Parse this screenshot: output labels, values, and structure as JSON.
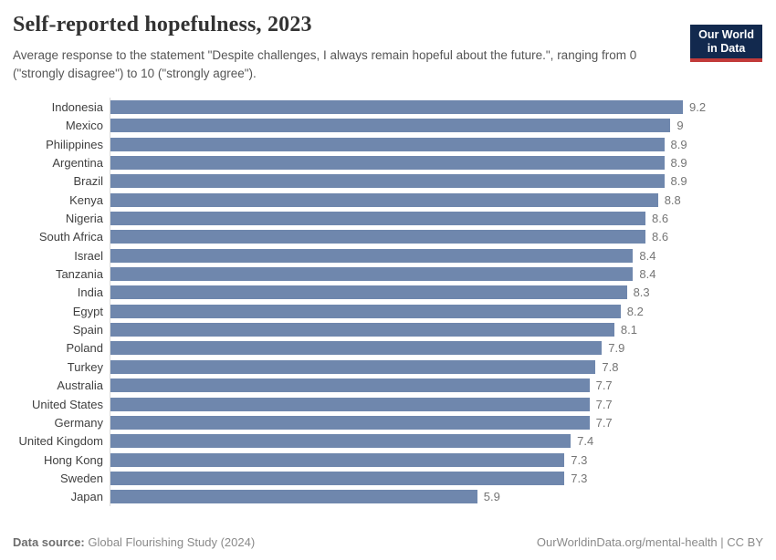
{
  "header": {
    "title": "Self-reported hopefulness, 2023",
    "subtitle": "Average response to the statement \"Despite challenges, I always remain hopeful about the future.\", ranging from 0 (\"strongly disagree\") to 10 (\"strongly agree\").",
    "logo": {
      "line1": "Our World",
      "line2": "in Data",
      "bg_color": "#12294e",
      "accent_color": "#c23b3a"
    }
  },
  "chart_data": {
    "type": "bar",
    "orientation": "horizontal",
    "title": "Self-reported hopefulness, 2023",
    "xlabel": "",
    "ylabel": "",
    "xlim": [
      0,
      9.2
    ],
    "grid": false,
    "data_labels": true,
    "bar_color": "#6f87ad",
    "axis_line_color": "#dcdcdc",
    "categories": [
      "Indonesia",
      "Mexico",
      "Philippines",
      "Argentina",
      "Brazil",
      "Kenya",
      "Nigeria",
      "South Africa",
      "Israel",
      "Tanzania",
      "India",
      "Egypt",
      "Spain",
      "Poland",
      "Turkey",
      "Australia",
      "United States",
      "Germany",
      "United Kingdom",
      "Hong Kong",
      "Sweden",
      "Japan"
    ],
    "values": [
      9.2,
      9,
      8.9,
      8.9,
      8.9,
      8.8,
      8.6,
      8.6,
      8.4,
      8.4,
      8.3,
      8.2,
      8.1,
      7.9,
      7.8,
      7.7,
      7.7,
      7.7,
      7.4,
      7.3,
      7.3,
      5.9
    ],
    "value_labels": [
      "9.2",
      "9",
      "8.9",
      "8.9",
      "8.9",
      "8.8",
      "8.6",
      "8.6",
      "8.4",
      "8.4",
      "8.3",
      "8.2",
      "8.1",
      "7.9",
      "7.8",
      "7.7",
      "7.7",
      "7.7",
      "7.4",
      "7.3",
      "7.3",
      "5.9"
    ]
  },
  "footer": {
    "datasource_label": "Data source:",
    "datasource_value": " Global Flourishing Study (2024)",
    "attribution": "OurWorldinData.org/mental-health | CC BY"
  }
}
